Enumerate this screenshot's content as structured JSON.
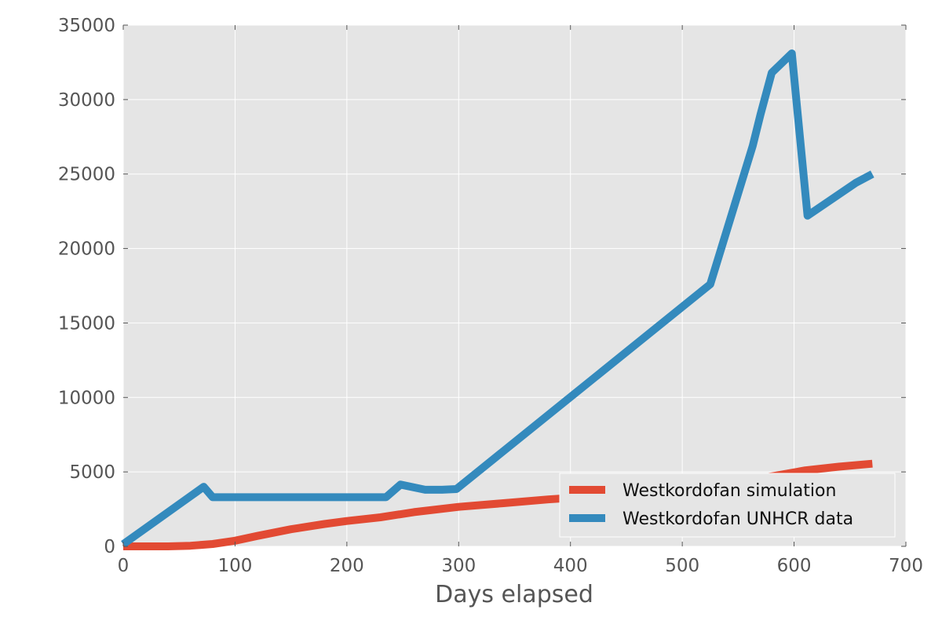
{
  "chart_data": {
    "type": "line",
    "title": "",
    "xlabel": "Days elapsed",
    "ylabel": "",
    "xlim": [
      0,
      700
    ],
    "ylim": [
      0,
      35000
    ],
    "xticks": [
      0,
      100,
      200,
      300,
      400,
      500,
      600,
      700
    ],
    "yticks": [
      0,
      5000,
      10000,
      15000,
      20000,
      25000,
      30000,
      35000
    ],
    "grid": true,
    "legend_position": "lower-right",
    "background_color": "#e5e5e5",
    "series": [
      {
        "name": "Westkordofan simulation",
        "color": "#e24a33",
        "x": [
          0,
          20,
          40,
          60,
          80,
          100,
          120,
          150,
          180,
          200,
          230,
          260,
          300,
          340,
          380,
          420,
          460,
          500,
          540,
          580,
          610,
          640,
          670
        ],
        "y": [
          0,
          0,
          0,
          40,
          160,
          380,
          700,
          1150,
          1500,
          1700,
          1950,
          2300,
          2650,
          2900,
          3150,
          3350,
          3600,
          3850,
          4200,
          4700,
          5100,
          5350,
          5550
        ]
      },
      {
        "name": "Westkordofan UNHCR data",
        "color": "#348abd",
        "x": [
          0,
          72,
          80,
          235,
          248,
          270,
          285,
          298,
          525,
          563,
          570,
          580,
          598,
          612,
          655,
          670
        ],
        "y": [
          150,
          4000,
          3300,
          3300,
          4150,
          3800,
          3800,
          3850,
          17600,
          26900,
          29000,
          31800,
          33100,
          22200,
          24400,
          25000
        ]
      }
    ]
  }
}
